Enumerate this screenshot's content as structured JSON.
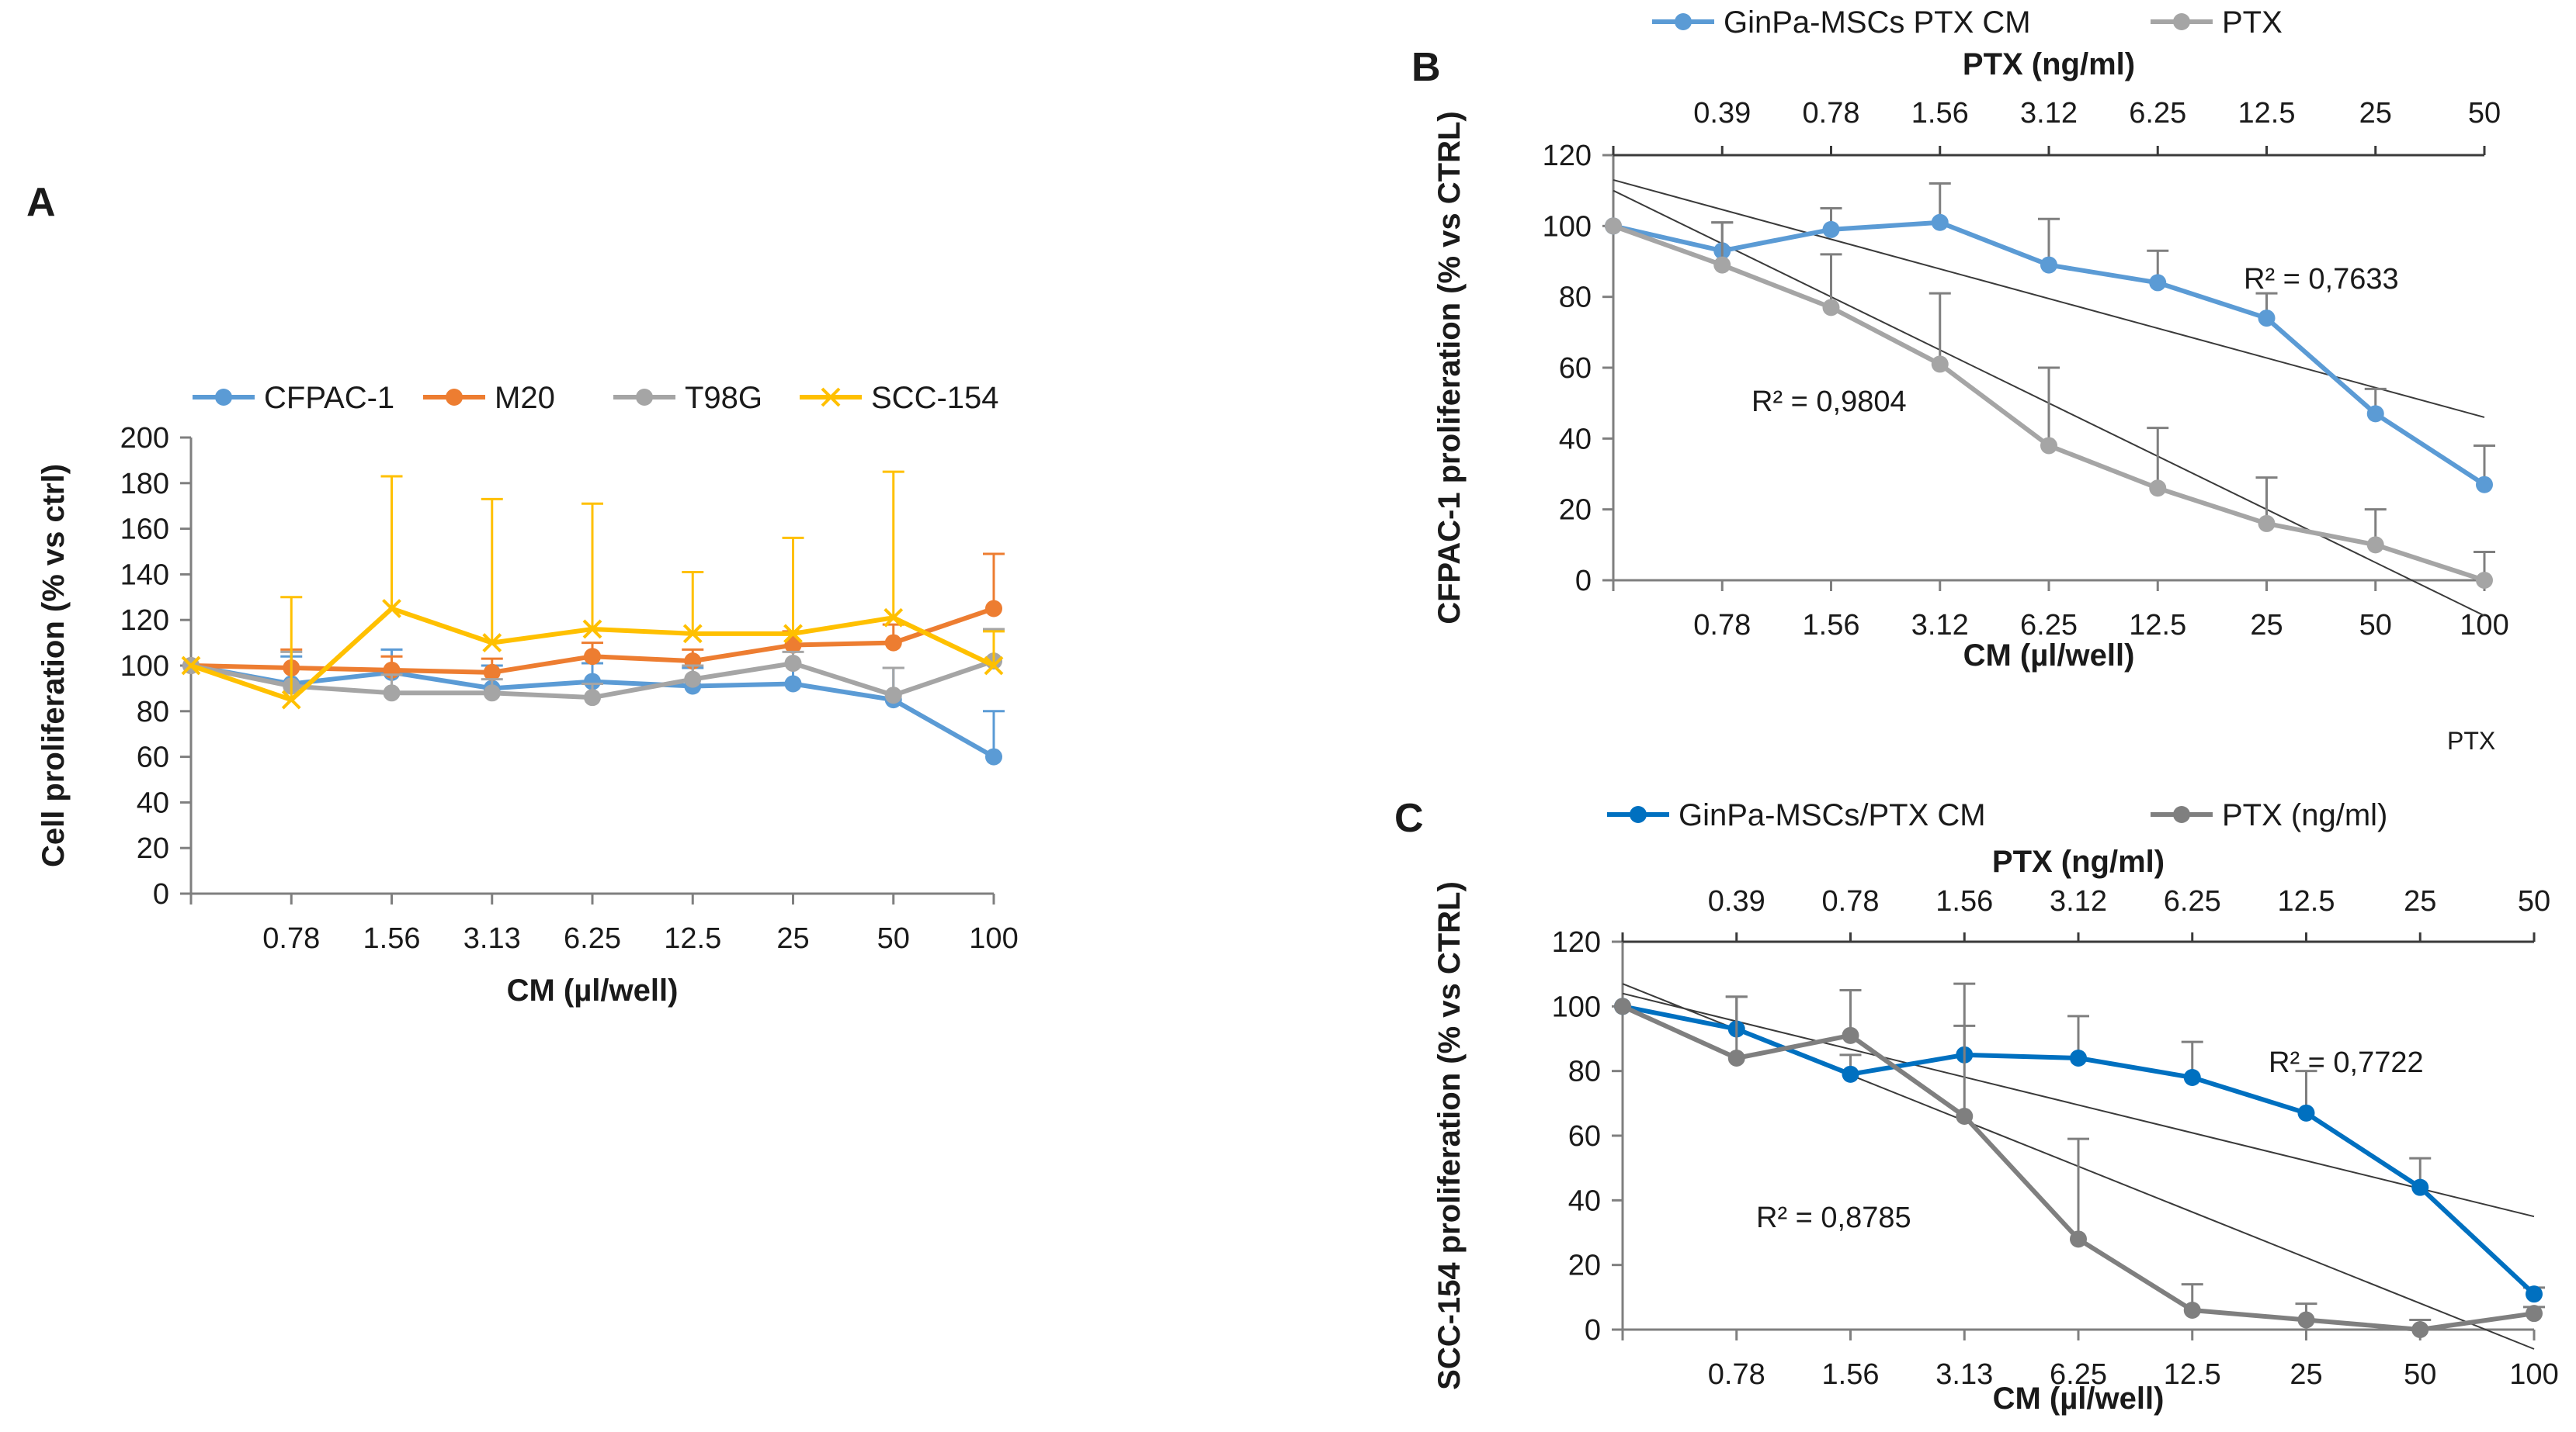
{
  "chart_data": [
    {
      "panel": "A",
      "type": "line",
      "title": "",
      "xlabel": "CM (µl/well)",
      "ylabel": "Cell proliferation (% vs ctrl)",
      "ylim": [
        0,
        200
      ],
      "yticks": [
        0,
        20,
        40,
        60,
        80,
        100,
        120,
        140,
        160,
        180,
        200
      ],
      "categories": [
        "",
        "0.78",
        "1.56",
        "3.13",
        "6.25",
        "12.5",
        "25",
        "50",
        "100"
      ],
      "legend_position": "top",
      "series": [
        {
          "name": "CFPAC-1",
          "color": "#5b9bd5",
          "marker": "circle",
          "values": [
            100,
            92,
            97,
            90,
            93,
            91,
            92,
            85,
            60
          ],
          "errors": [
            0,
            12,
            10,
            10,
            8,
            8,
            8,
            14,
            20
          ]
        },
        {
          "name": "M20",
          "color": "#ed7d31",
          "marker": "circle",
          "values": [
            100,
            99,
            98,
            97,
            104,
            102,
            109,
            110,
            125
          ],
          "errors": [
            0,
            8,
            6,
            6,
            6,
            5,
            6,
            8,
            24
          ]
        },
        {
          "name": "T98G",
          "color": "#a5a5a5",
          "marker": "circle",
          "values": [
            100,
            91,
            88,
            88,
            86,
            94,
            101,
            87,
            102
          ],
          "errors": [
            0,
            15,
            8,
            6,
            6,
            6,
            5,
            12,
            14
          ]
        },
        {
          "name": "SCC-154",
          "color": "#ffc000",
          "marker": "cross",
          "values": [
            100,
            85,
            125,
            110,
            116,
            114,
            114,
            121,
            100
          ],
          "errors": [
            0,
            45,
            58,
            63,
            55,
            27,
            42,
            64,
            15
          ]
        }
      ]
    },
    {
      "panel": "B",
      "type": "line",
      "title": "",
      "xlabel": "CM (µl/well)",
      "x2label": "PTX (ng/ml)",
      "ylabel": "CFPAC-1 proliferation (% vs CTRL)",
      "ylim": [
        0,
        120
      ],
      "yticks": [
        0,
        20,
        40,
        60,
        80,
        100,
        120
      ],
      "categories": [
        "",
        "0.78",
        "1.56",
        "3.12",
        "6.25",
        "12.5",
        "25",
        "50",
        "100"
      ],
      "categories_top": [
        "",
        "0.39",
        "0.78",
        "1.56",
        "3.12",
        "6.25",
        "12.5",
        "25",
        "50"
      ],
      "legend_position": "top",
      "series": [
        {
          "name": "GinPa-MSCs PTX CM",
          "color": "#5b9bd5",
          "marker": "circle",
          "values": [
            100,
            93,
            99,
            101,
            89,
            84,
            74,
            47,
            27
          ],
          "errors": [
            0,
            8,
            6,
            11,
            13,
            9,
            7,
            7,
            11
          ]
        },
        {
          "name": "PTX",
          "color": "#a5a5a5",
          "marker": "circle",
          "values": [
            100,
            89,
            77,
            61,
            38,
            26,
            16,
            10,
            0
          ],
          "errors": [
            0,
            12,
            15,
            20,
            22,
            17,
            13,
            10,
            8
          ]
        }
      ],
      "trendlines": [
        {
          "series": "GinPa-MSCs PTX CM",
          "y_start": 113,
          "y_end": 46,
          "r2_label": "R² = 0,7633"
        },
        {
          "series": "PTX",
          "y_start": 110,
          "y_end": -10,
          "r2_label": "R² = 0,9804"
        }
      ]
    },
    {
      "panel": "C",
      "type": "line",
      "title": "",
      "xlabel": "CM (µl/well)",
      "x2label": "PTX (ng/ml)",
      "ylabel": "SCC-154 proliferation (% vs CTRL)",
      "ylim": [
        0,
        120
      ],
      "yticks": [
        0,
        20,
        40,
        60,
        80,
        100,
        120
      ],
      "categories": [
        "",
        "0.78",
        "1.56",
        "3.13",
        "6.25",
        "12.5",
        "25",
        "50",
        "100"
      ],
      "categories_top": [
        "",
        "0.39",
        "0.78",
        "1.56",
        "3.12",
        "6.25",
        "12.5",
        "25",
        "50"
      ],
      "legend_position": "top",
      "series": [
        {
          "name": "GinPa-MSCs/PTX CM",
          "color": "#0070c0",
          "marker": "circle",
          "values": [
            100,
            93,
            79,
            85,
            84,
            78,
            67,
            44,
            11
          ],
          "errors": [
            0,
            10,
            6,
            9,
            13,
            11,
            13,
            9,
            2
          ]
        },
        {
          "name": "PTX (ng/ml)",
          "color": "#7f7f7f",
          "marker": "circle",
          "values": [
            100,
            84,
            91,
            66,
            28,
            6,
            3,
            0,
            5
          ],
          "errors": [
            0,
            19,
            14,
            41,
            31,
            8,
            5,
            3,
            2
          ]
        }
      ],
      "trendlines": [
        {
          "series": "GinPa-MSCs/PTX CM",
          "y_start": 104,
          "y_end": 35,
          "r2_label": "R² = 0,7722"
        },
        {
          "series": "PTX (ng/ml)",
          "y_start": 107,
          "y_end": -6,
          "r2_label": "R² = 0,8785"
        }
      ]
    }
  ],
  "labels": {
    "panel_a": "A",
    "panel_b": "B",
    "panel_c": "C",
    "stray_ptx": "PTX"
  }
}
